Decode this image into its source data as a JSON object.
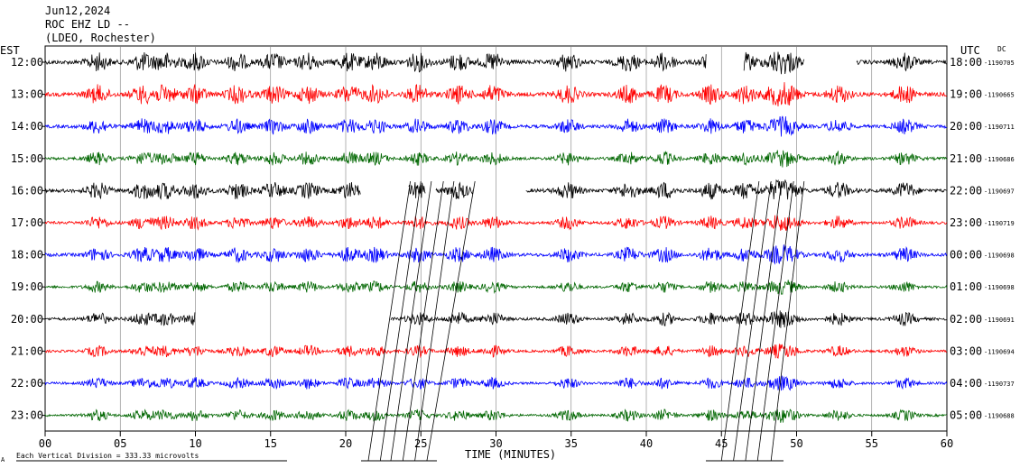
{
  "header": {
    "date": "Jun12,2024",
    "station": "ROC EHZ LD --",
    "network": "(LDEO, Rochester)"
  },
  "left_zone": "EST",
  "right_zone": "UTC",
  "dc_label": "DC",
  "footer": {
    "scale_note": "Each Vertical Division =  333.33 microvolts",
    "corner_mark": "A"
  },
  "colors": {
    "row_cycle": [
      "#000000",
      "#ff0000",
      "#0000ff",
      "#006600"
    ],
    "grid": "#808080",
    "frame": "#000000"
  },
  "chart_data": {
    "type": "line",
    "xlabel": "TIME (MINUTES)",
    "xlim": [
      0,
      60
    ],
    "x_ticks": [
      {
        "value": 0,
        "label": "00"
      },
      {
        "value": 5,
        "label": "05"
      },
      {
        "value": 10,
        "label": "10"
      },
      {
        "value": 15,
        "label": "15"
      },
      {
        "value": 20,
        "label": "20"
      },
      {
        "value": 25,
        "label": "25"
      },
      {
        "value": 30,
        "label": "30"
      },
      {
        "value": 35,
        "label": "35"
      },
      {
        "value": 40,
        "label": "40"
      },
      {
        "value": 45,
        "label": "45"
      },
      {
        "value": 50,
        "label": "50"
      },
      {
        "value": 55,
        "label": "55"
      },
      {
        "value": 60,
        "label": "60"
      }
    ],
    "rows": [
      {
        "left": "12:00",
        "right": "18:00",
        "dc": "-1190705",
        "color": "#000000",
        "segments": [
          [
            0,
            44
          ],
          [
            46.5,
            50.5
          ],
          [
            54,
            60
          ]
        ],
        "amp": 1.0
      },
      {
        "left": "13:00",
        "right": "19:00",
        "dc": "-1190665",
        "color": "#ff0000",
        "segments": [
          [
            0,
            60
          ]
        ],
        "amp": 1.0
      },
      {
        "left": "14:00",
        "right": "20:00",
        "dc": "-1190711",
        "color": "#0000ff",
        "segments": [
          [
            0,
            60
          ]
        ],
        "amp": 0.8
      },
      {
        "left": "15:00",
        "right": "21:00",
        "dc": "-1190686",
        "color": "#006600",
        "segments": [
          [
            0,
            60
          ]
        ],
        "amp": 0.7
      },
      {
        "left": "16:00",
        "right": "22:00",
        "dc": "-1190697",
        "color": "#000000",
        "segments": [
          [
            0,
            21
          ],
          [
            24.2,
            25.3
          ],
          [
            26,
            28.5
          ],
          [
            32,
            60
          ]
        ],
        "amp": 0.9
      },
      {
        "left": "17:00",
        "right": "23:00",
        "dc": "-1190719",
        "color": "#ff0000",
        "segments": [
          [
            0,
            60
          ]
        ],
        "amp": 0.7
      },
      {
        "left": "18:00",
        "right": "00:00",
        "dc": "-1190698",
        "color": "#0000ff",
        "segments": [
          [
            0,
            60
          ]
        ],
        "amp": 0.8
      },
      {
        "left": "19:00",
        "right": "01:00",
        "dc": "-1190698",
        "color": "#006600",
        "segments": [
          [
            0,
            60
          ]
        ],
        "amp": 0.6
      },
      {
        "left": "20:00",
        "right": "02:00",
        "dc": "-1190691",
        "color": "#000000",
        "segments": [
          [
            0,
            10
          ],
          [
            23,
            60
          ]
        ],
        "amp": 0.7
      },
      {
        "left": "21:00",
        "right": "03:00",
        "dc": "-1190694",
        "color": "#ff0000",
        "segments": [
          [
            0,
            60
          ]
        ],
        "amp": 0.6
      },
      {
        "left": "22:00",
        "right": "04:00",
        "dc": "-1190737",
        "color": "#0000ff",
        "segments": [
          [
            0,
            60
          ]
        ],
        "amp": 0.6
      },
      {
        "left": "23:00",
        "right": "05:00",
        "dc": "-1190688",
        "color": "#006600",
        "segments": [
          [
            0,
            60
          ]
        ],
        "amp": 0.6
      }
    ]
  }
}
